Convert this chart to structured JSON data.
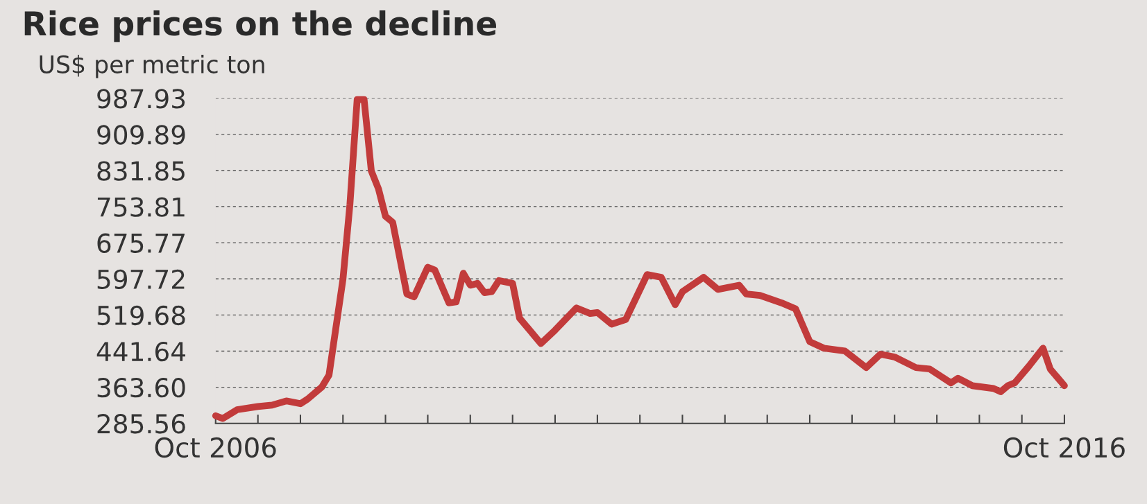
{
  "chart_data": {
    "type": "line",
    "title": "Rice prices on the decline",
    "subtitle": "US$ per metric ton",
    "x": [
      "2006-10",
      "2006-11",
      "2007-01",
      "2007-04",
      "2007-06",
      "2007-08",
      "2007-10",
      "2007-11",
      "2008-01",
      "2008-02",
      "2008-04",
      "2008-05",
      "2008-06",
      "2008-07",
      "2008-08",
      "2008-09",
      "2008-10",
      "2008-11",
      "2009-01",
      "2009-02",
      "2009-04",
      "2009-05",
      "2009-07",
      "2009-08",
      "2009-09",
      "2009-10",
      "2009-11",
      "2009-12",
      "2010-01",
      "2010-02",
      "2010-04",
      "2010-05",
      "2010-08",
      "2010-10",
      "2011-01",
      "2011-03",
      "2011-04",
      "2011-06",
      "2011-08",
      "2011-11",
      "2012-01",
      "2012-03",
      "2012-04",
      "2012-07",
      "2012-09",
      "2012-12",
      "2013-01",
      "2013-03",
      "2013-06",
      "2013-08",
      "2013-10",
      "2013-12",
      "2014-03",
      "2014-06",
      "2014-08",
      "2014-10",
      "2015-01",
      "2015-03",
      "2015-06",
      "2015-07",
      "2015-09",
      "2015-12",
      "2016-01",
      "2016-02",
      "2016-03",
      "2016-05",
      "2016-07",
      "2016-08",
      "2016-10"
    ],
    "series": [
      {
        "color": "#c23b3b",
        "values": [
          302,
          296,
          315,
          322,
          325,
          334,
          328,
          338,
          364,
          390,
          597,
          759,
          985,
          985,
          831,
          792,
          733,
          720,
          565,
          559,
          623,
          617,
          546,
          548,
          610,
          584,
          588,
          568,
          570,
          594,
          588,
          513,
          458,
          487,
          535,
          523,
          525,
          500,
          510,
          607,
          601,
          542,
          570,
          601,
          575,
          584,
          565,
          562,
          546,
          533,
          462,
          448,
          442,
          406,
          435,
          429,
          406,
          403,
          373,
          383,
          367,
          361,
          354,
          367,
          373,
          409,
          448,
          403,
          367
        ]
      }
    ],
    "xlim": [
      "2006-10",
      "2016-10"
    ],
    "xticks": [
      {
        "value": "2006-10",
        "label": "Oct 2006"
      },
      {
        "value": "2007-04",
        "label": null
      },
      {
        "value": "2007-10",
        "label": null
      },
      {
        "value": "2008-04",
        "label": null
      },
      {
        "value": "2008-10",
        "label": null
      },
      {
        "value": "2009-04",
        "label": null
      },
      {
        "value": "2009-10",
        "label": null
      },
      {
        "value": "2010-04",
        "label": null
      },
      {
        "value": "2010-10",
        "label": null
      },
      {
        "value": "2011-04",
        "label": null
      },
      {
        "value": "2011-10",
        "label": null
      },
      {
        "value": "2012-04",
        "label": null
      },
      {
        "value": "2012-10",
        "label": null
      },
      {
        "value": "2013-04",
        "label": null
      },
      {
        "value": "2013-10",
        "label": null
      },
      {
        "value": "2014-04",
        "label": null
      },
      {
        "value": "2014-10",
        "label": null
      },
      {
        "value": "2015-04",
        "label": null
      },
      {
        "value": "2015-10",
        "label": null
      },
      {
        "value": "2016-04",
        "label": null
      },
      {
        "value": "2016-10",
        "label": "Oct 2016"
      }
    ],
    "ylim": [
      285.56,
      987.93
    ],
    "yticks": [
      {
        "value": 285.56,
        "label": "285.56"
      },
      {
        "value": 363.6,
        "label": "363.60"
      },
      {
        "value": 441.64,
        "label": "441.64"
      },
      {
        "value": 519.68,
        "label": "519.68"
      },
      {
        "value": 597.72,
        "label": "597.72"
      },
      {
        "value": 675.77,
        "label": "675.77"
      },
      {
        "value": 753.81,
        "label": "753.81"
      },
      {
        "value": 831.85,
        "label": "831.85"
      },
      {
        "value": 909.89,
        "label": "909.89"
      },
      {
        "value": 987.93,
        "label": "987.93"
      }
    ],
    "grid": "y",
    "line_style": "solid",
    "marker": "none"
  }
}
